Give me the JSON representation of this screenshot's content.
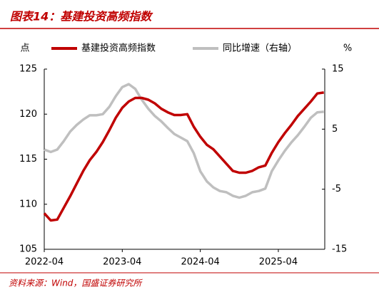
{
  "chart_data": {
    "type": "line",
    "title": "图表14：基建投资高频指数",
    "y_label": "点",
    "y2_label": "%",
    "source": "资料来源：Wind，国盛证券研究所",
    "categories": [
      "2022-04",
      null,
      null,
      null,
      null,
      null,
      null,
      null,
      null,
      null,
      null,
      null,
      "2023-04",
      null,
      null,
      null,
      null,
      null,
      null,
      null,
      null,
      null,
      null,
      null,
      "2024-04",
      null,
      null,
      null,
      null,
      null,
      null,
      null,
      null,
      null,
      null,
      null,
      "2025-04",
      null,
      null,
      null,
      null,
      null,
      null,
      null
    ],
    "series": [
      {
        "name": "基建投资高频指数",
        "color": "#c00000",
        "axis": "y",
        "values": [
          109.0,
          108.2,
          108.3,
          109.6,
          110.9,
          112.3,
          113.7,
          114.9,
          115.8,
          116.9,
          118.2,
          119.6,
          120.7,
          121.4,
          121.8,
          121.8,
          121.6,
          121.2,
          120.6,
          120.2,
          119.9,
          119.9,
          120.0,
          118.6,
          117.5,
          116.6,
          116.1,
          115.3,
          114.5,
          113.7,
          113.5,
          113.5,
          113.7,
          114.1,
          114.3,
          115.7,
          116.9,
          117.9,
          118.8,
          119.8,
          120.6,
          121.4,
          122.3,
          122.4
        ]
      },
      {
        "name": "同比增速（右轴）",
        "color": "#bfbfbf",
        "axis": "y2",
        "values": [
          1.6,
          1.2,
          1.6,
          3.0,
          4.6,
          5.7,
          6.6,
          7.3,
          7.3,
          7.5,
          8.7,
          10.5,
          12.0,
          12.5,
          11.7,
          9.9,
          8.4,
          7.2,
          6.3,
          5.2,
          4.2,
          3.6,
          3.0,
          1.0,
          -2.0,
          -3.7,
          -4.7,
          -5.3,
          -5.5,
          -6.1,
          -6.4,
          -6.1,
          -5.5,
          -5.3,
          -4.9,
          -2.0,
          -0.2,
          1.4,
          2.8,
          4.0,
          5.4,
          6.9,
          7.8,
          7.9
        ]
      }
    ],
    "ylim": [
      105,
      125
    ],
    "yticks": [
      105,
      110,
      115,
      120,
      125
    ],
    "y2lim": [
      -15,
      15
    ],
    "y2ticks": [
      -15,
      -5,
      5,
      15
    ],
    "grid": false
  }
}
